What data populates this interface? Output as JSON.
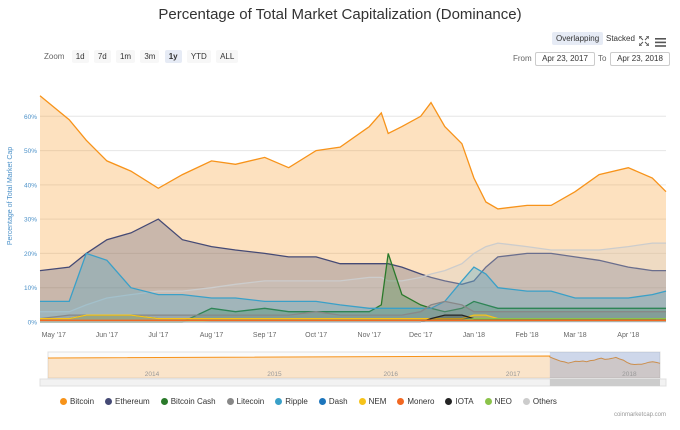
{
  "chart_data": {
    "type": "area",
    "title": "Percentage of Total Market Capitalization (Dominance)",
    "ylabel": "Percentage of Total Market Cap",
    "ylim": [
      0,
      70
    ],
    "y_ticks": [
      "0%",
      "10%",
      "20%",
      "30%",
      "40%",
      "50%",
      "60%"
    ],
    "x_ticks": [
      "May '17",
      "Jun '17",
      "Jul '17",
      "Aug '17",
      "Sep '17",
      "Oct '17",
      "Nov '17",
      "Dec '17",
      "Jan '18",
      "Feb '18",
      "Mar '18",
      "Apr '18"
    ],
    "x_range": [
      "2017-04-23",
      "2018-04-23"
    ],
    "x": [
      "2017-04-23",
      "2017-05-10",
      "2017-05-20",
      "2017-06-01",
      "2017-06-15",
      "2017-07-01",
      "2017-07-15",
      "2017-08-01",
      "2017-08-15",
      "2017-09-01",
      "2017-09-15",
      "2017-10-01",
      "2017-10-15",
      "2017-11-01",
      "2017-11-08",
      "2017-11-12",
      "2017-11-20",
      "2017-12-01",
      "2017-12-07",
      "2017-12-15",
      "2017-12-25",
      "2018-01-01",
      "2018-01-08",
      "2018-01-15",
      "2018-02-01",
      "2018-02-15",
      "2018-03-01",
      "2018-03-15",
      "2018-04-01",
      "2018-04-15",
      "2018-04-23"
    ],
    "series": [
      {
        "name": "Bitcoin",
        "color": "#f7931a",
        "values": [
          66,
          59,
          53,
          47,
          44,
          39,
          43,
          47,
          46,
          48,
          45,
          50,
          51,
          57,
          61,
          55,
          57,
          60,
          64,
          57,
          52,
          42,
          35,
          33,
          34,
          34,
          38,
          43,
          45,
          42,
          38
        ]
      },
      {
        "name": "Ethereum",
        "color": "#454a75",
        "values": [
          15,
          16,
          20,
          24,
          26,
          30,
          24,
          22,
          21,
          20,
          19,
          19,
          17,
          17,
          17,
          17,
          16,
          14,
          13,
          12,
          11,
          12,
          16,
          19,
          20,
          20,
          19,
          18,
          16,
          15,
          15
        ]
      },
      {
        "name": "Bitcoin Cash",
        "color": "#2a7a2a",
        "values": [
          0,
          0,
          0,
          0,
          0,
          0,
          0,
          4,
          3,
          4,
          3,
          3,
          3,
          3,
          5,
          20,
          8,
          5,
          4,
          3,
          4,
          6,
          5,
          4,
          4,
          4,
          4,
          4,
          4,
          4,
          4
        ]
      },
      {
        "name": "Litecoin",
        "color": "#888888",
        "values": [
          1,
          2,
          2,
          2,
          2,
          2,
          2,
          2,
          2,
          2,
          2,
          3,
          2,
          2,
          2,
          2,
          2,
          3,
          5,
          6,
          5,
          3,
          3,
          3,
          3,
          3,
          3,
          3,
          3,
          3,
          3
        ]
      },
      {
        "name": "Ripple",
        "color": "#3aa0c8",
        "values": [
          6,
          6,
          20,
          18,
          10,
          8,
          8,
          7,
          7,
          6,
          6,
          6,
          5,
          4,
          4,
          4,
          4,
          4,
          4,
          6,
          12,
          16,
          14,
          10,
          9,
          9,
          7,
          7,
          7,
          8,
          9
        ]
      },
      {
        "name": "Dash",
        "color": "#1c75bc",
        "values": [
          1,
          1,
          2,
          2,
          2,
          1,
          1,
          1,
          1,
          1,
          1,
          1,
          1,
          1,
          1,
          1,
          1,
          1,
          1,
          1,
          1,
          1,
          1,
          1,
          1,
          1,
          1,
          1,
          1,
          1,
          1
        ]
      },
      {
        "name": "NEM",
        "color": "#f6c31a",
        "values": [
          1,
          1,
          2,
          2,
          2,
          1,
          1,
          1,
          1,
          1,
          1,
          1,
          1,
          1,
          1,
          1,
          1,
          1,
          1,
          1,
          1,
          2,
          2,
          1,
          1,
          1,
          1,
          1,
          1,
          1,
          1
        ]
      },
      {
        "name": "Monero",
        "color": "#f26822",
        "values": [
          0.5,
          0.5,
          0.5,
          0.5,
          0.5,
          0.5,
          0.5,
          0.5,
          0.5,
          0.5,
          0.5,
          0.5,
          0.5,
          0.5,
          0.5,
          0.5,
          0.5,
          0.5,
          0.5,
          0.5,
          0.5,
          0.5,
          0.5,
          0.5,
          0.5,
          0.5,
          0.5,
          0.5,
          0.5,
          0.5,
          0.5
        ]
      },
      {
        "name": "IOTA",
        "color": "#242424",
        "values": [
          0,
          0,
          0,
          0,
          0,
          0,
          0,
          0,
          0,
          0,
          0,
          0,
          0,
          0,
          0,
          0,
          0,
          0,
          1,
          2,
          2,
          1,
          1,
          1,
          1,
          1,
          1,
          1,
          1,
          1,
          1
        ]
      },
      {
        "name": "NEO",
        "color": "#8bc34a",
        "values": [
          0,
          0,
          0,
          0,
          0,
          0,
          0,
          0.5,
          0.5,
          0.5,
          0.5,
          0.5,
          0.5,
          0.5,
          0.5,
          0.5,
          0.5,
          0.5,
          0.5,
          0.5,
          0.5,
          1,
          1,
          1,
          1,
          1,
          1,
          1,
          1,
          1,
          1
        ]
      },
      {
        "name": "Others",
        "color": "#cccccc",
        "values": [
          3,
          3,
          5,
          7,
          8,
          9,
          9,
          10,
          11,
          12,
          12,
          12,
          12,
          13,
          13,
          12,
          12,
          13,
          14,
          15,
          17,
          20,
          22,
          23,
          22,
          21,
          21,
          21,
          22,
          23,
          23
        ]
      }
    ],
    "navigator_ticks": [
      "2014",
      "2015",
      "2016",
      "2017",
      "2018"
    ],
    "grid": true,
    "legend": "bottom"
  },
  "ui": {
    "zoom_label": "Zoom",
    "zoom_buttons": [
      "1d",
      "7d",
      "1m",
      "3m",
      "1y",
      "YTD",
      "ALL"
    ],
    "active_zoom": "1y",
    "overlapping_label": "Overlapping",
    "stacked_label": "Stacked",
    "from_label": "From",
    "to_label": "To",
    "from_date": "Apr 23, 2017",
    "to_date": "Apr 23, 2018",
    "expand_icon": "expand-icon",
    "menu_icon": "menu-icon",
    "credit": "coinmarketcap.com"
  }
}
